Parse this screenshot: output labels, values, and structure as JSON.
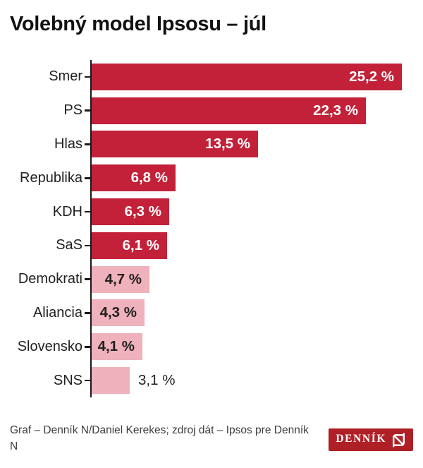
{
  "title": "Volebný model Ipsosu – júl",
  "chart_data": {
    "type": "bar",
    "orientation": "horizontal",
    "title": "Volebný model Ipsosu – júl",
    "xlabel": "",
    "ylabel": "",
    "xlim": [
      0,
      25.2
    ],
    "grid": false,
    "legend": false,
    "categories": [
      "Smer",
      "PS",
      "Hlas",
      "Republika",
      "KDH",
      "SaS",
      "Demokrati",
      "Aliancia",
      "Slovensko",
      "SNS"
    ],
    "values": [
      25.2,
      22.3,
      13.5,
      6.8,
      6.3,
      6.1,
      4.7,
      4.3,
      4.1,
      3.1
    ],
    "series": [
      {
        "name": "Smer",
        "value": 25.2,
        "label": "25,2 %",
        "bar_color": "#c32139",
        "label_color": "#ffffff",
        "label_inside": true
      },
      {
        "name": "PS",
        "value": 22.3,
        "label": "22,3 %",
        "bar_color": "#c32139",
        "label_color": "#ffffff",
        "label_inside": true
      },
      {
        "name": "Hlas",
        "value": 13.5,
        "label": "13,5 %",
        "bar_color": "#c32139",
        "label_color": "#ffffff",
        "label_inside": true
      },
      {
        "name": "Republika",
        "value": 6.8,
        "label": "6,8 %",
        "bar_color": "#c32139",
        "label_color": "#ffffff",
        "label_inside": true
      },
      {
        "name": "KDH",
        "value": 6.3,
        "label": "6,3 %",
        "bar_color": "#c32139",
        "label_color": "#ffffff",
        "label_inside": true
      },
      {
        "name": "SaS",
        "value": 6.1,
        "label": "6,1 %",
        "bar_color": "#c32139",
        "label_color": "#ffffff",
        "label_inside": true
      },
      {
        "name": "Demokrati",
        "value": 4.7,
        "label": "4,7 %",
        "bar_color": "#efb1bb",
        "label_color": "#1f1f1f",
        "label_inside": true
      },
      {
        "name": "Aliancia",
        "value": 4.3,
        "label": "4,3 %",
        "bar_color": "#efb1bb",
        "label_color": "#1f1f1f",
        "label_inside": true
      },
      {
        "name": "Slovensko",
        "value": 4.1,
        "label": "4,1 %",
        "bar_color": "#efb1bb",
        "label_color": "#1f1f1f",
        "label_inside": true
      },
      {
        "name": "SNS",
        "value": 3.1,
        "label": "3,1 %",
        "bar_color": "#efb1bb",
        "label_color": "#1f1f1f",
        "label_inside": false
      }
    ],
    "colors": {
      "bar_major": "#c32139",
      "bar_minor": "#efb1bb",
      "axis": "#1a1a1a"
    }
  },
  "footer": {
    "credit_line1": "Graf – Denník N/Daniel Kerekes; zdroj dát – Ipsos pre Denník",
    "credit_line2": "N",
    "logo_text": "DENNÍK",
    "logo_bg": "#af2026"
  }
}
